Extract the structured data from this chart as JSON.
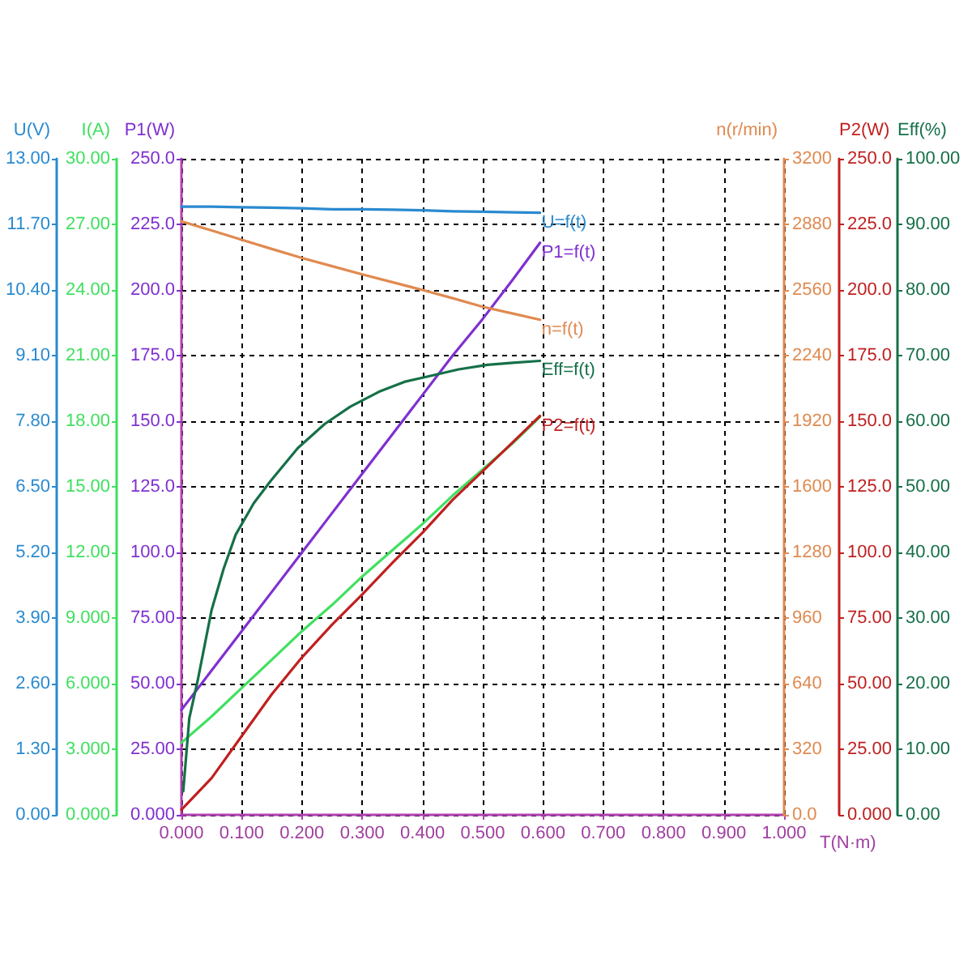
{
  "chart_data": [
    {
      "type": "line",
      "xlabel": "T(N·m)",
      "ylabel": "P1(W)",
      "y2label": "U(V)",
      "y3label": "I(A)",
      "xlim": [
        0,
        1
      ],
      "xticks": [
        {
          "value": 0,
          "label": "0.000"
        },
        {
          "value": 0.1,
          "label": "0.100"
        },
        {
          "value": 0.2,
          "label": "0.200"
        },
        {
          "value": 0.3,
          "label": "0.300"
        },
        {
          "value": 0.4,
          "label": "0.400"
        },
        {
          "value": 0.5,
          "label": "0.500"
        },
        {
          "value": 0.6,
          "label": "0.600"
        },
        {
          "value": 0.7,
          "label": "0.700"
        },
        {
          "value": 0.8,
          "label": "0.800"
        },
        {
          "value": 0.9,
          "label": "0.900"
        },
        {
          "value": 1,
          "label": "1.000"
        }
      ],
      "ylim": [
        0,
        250
      ],
      "yticks": [
        {
          "value": 0,
          "label": "0.000"
        },
        {
          "value": 25,
          "label": "25.00"
        },
        {
          "value": 50,
          "label": "50.00"
        },
        {
          "value": 75,
          "label": "75.00"
        },
        {
          "value": 100,
          "label": "100.0"
        },
        {
          "value": 125,
          "label": "125.0"
        },
        {
          "value": 150,
          "label": "150.0"
        },
        {
          "value": 175,
          "label": "175.0"
        },
        {
          "value": 200,
          "label": "200.0"
        },
        {
          "value": 225,
          "label": "225.0"
        },
        {
          "value": 250,
          "label": "250.0"
        }
      ],
      "y2lim": [
        0,
        13
      ],
      "y2ticks": [
        {
          "value": 0,
          "label": "0.00"
        },
        {
          "value": 1.3,
          "label": "1.30"
        },
        {
          "value": 2.6,
          "label": "2.60"
        },
        {
          "value": 3.9,
          "label": "3.90"
        },
        {
          "value": 5.2,
          "label": "5.20"
        },
        {
          "value": 6.5,
          "label": "6.50"
        },
        {
          "value": 7.8,
          "label": "7.80"
        },
        {
          "value": 9.1,
          "label": "9.10"
        },
        {
          "value": 10.4,
          "label": "10.40"
        },
        {
          "value": 11.7,
          "label": "11.70"
        },
        {
          "value": 13,
          "label": "13.00"
        }
      ],
      "y3lim": [
        0,
        30
      ],
      "y3ticks": [
        {
          "value": 0,
          "label": "0.000"
        },
        {
          "value": 3,
          "label": "3.000"
        },
        {
          "value": 6,
          "label": "6.000"
        },
        {
          "value": 9,
          "label": "9.000"
        },
        {
          "value": 12,
          "label": "12.00"
        },
        {
          "value": 15,
          "label": "15.00"
        },
        {
          "value": 18,
          "label": "18.00"
        },
        {
          "value": 21,
          "label": "21.00"
        },
        {
          "value": 24,
          "label": "24.00"
        },
        {
          "value": 27,
          "label": "27.00"
        },
        {
          "value": 30,
          "label": "30.00"
        }
      ],
      "x": [
        0,
        0.05,
        0.1,
        0.15,
        0.2,
        0.25,
        0.3,
        0.35,
        0.4,
        0.45,
        0.5,
        0.55,
        0.595
      ],
      "series": [
        {
          "name": "U=f(t)",
          "axis": "y2",
          "color": "#2a8ad0",
          "values": [
            12.05,
            12.05,
            12.04,
            12.03,
            12.02,
            12.0,
            12.0,
            11.99,
            11.98,
            11.96,
            11.95,
            11.94,
            11.93
          ]
        },
        {
          "name": "P1=f(t)",
          "color": "#8030d0",
          "values": [
            40,
            55,
            70,
            85,
            100,
            115,
            130,
            145,
            160,
            175,
            189,
            204,
            218
          ]
        },
        {
          "axis": "y3",
          "color": "#40e060",
          "values": [
            3.3,
            4.5,
            5.8,
            7.1,
            8.4,
            9.6,
            10.9,
            12.1,
            13.3,
            14.6,
            15.8,
            17.0,
            18.2
          ]
        }
      ],
      "grid": true,
      "legend": false,
      "marker": "none",
      "line_style": "solid"
    },
    {
      "type": "line",
      "ylabel": "n(r/min)",
      "y2label": "P2(W)",
      "y3label": "Eff(%)",
      "tick_labels": "y",
      "xlim": [
        0,
        1
      ],
      "ylim": [
        0,
        3200
      ],
      "yticks": [
        {
          "value": 0,
          "label": "0.0"
        },
        320,
        640,
        960,
        1280,
        1600,
        1920,
        2240,
        2560,
        2880,
        3200
      ],
      "y2lim": [
        0,
        250
      ],
      "y2ticks": [
        {
          "value": 0,
          "label": "0.000"
        },
        {
          "value": 25,
          "label": "25.00"
        },
        {
          "value": 50,
          "label": "50.00"
        },
        {
          "value": 75,
          "label": "75.00"
        },
        {
          "value": 100,
          "label": "100.0"
        },
        {
          "value": 125,
          "label": "125.0"
        },
        {
          "value": 150,
          "label": "150.0"
        },
        {
          "value": 175,
          "label": "175.0"
        },
        {
          "value": 200,
          "label": "200.0"
        },
        {
          "value": 225,
          "label": "225.0"
        },
        {
          "value": 250,
          "label": "250.0"
        }
      ],
      "y3lim": [
        0,
        100
      ],
      "y3ticks": [
        {
          "value": 0,
          "label": "0.00"
        },
        {
          "value": 10,
          "label": "10.00"
        },
        {
          "value": 20,
          "label": "20.00"
        },
        {
          "value": 30,
          "label": "30.00"
        },
        {
          "value": 40,
          "label": "40.00"
        },
        {
          "value": 50,
          "label": "50.00"
        },
        {
          "value": 60,
          "label": "60.00"
        },
        {
          "value": 70,
          "label": "70.00"
        },
        {
          "value": 80,
          "label": "80.00"
        },
        {
          "value": 90,
          "label": "90.00"
        },
        {
          "value": 100,
          "label": "100.00"
        }
      ],
      "x": [
        0,
        0.05,
        0.1,
        0.15,
        0.2,
        0.25,
        0.3,
        0.35,
        0.4,
        0.45,
        0.5,
        0.55,
        0.595
      ],
      "series": [
        {
          "name": "n=f(t)",
          "color": "#e08a50",
          "values": [
            2895,
            2850,
            2805,
            2760,
            2716,
            2676,
            2636,
            2598,
            2560,
            2520,
            2478,
            2445,
            2415
          ]
        },
        {
          "name": "Eff=f(t)",
          "axis": "y3",
          "color": "#157048",
          "x": [
            0.003,
            0.013,
            0.027,
            0.05,
            0.07,
            0.09,
            0.12,
            0.148,
            0.193,
            0.238,
            0.28,
            0.328,
            0.37,
            0.418,
            0.46,
            0.508,
            0.55,
            0.595
          ],
          "values": [
            3.6,
            14.7,
            20.5,
            31.2,
            37.5,
            42.7,
            47.5,
            50.9,
            55.9,
            59.6,
            62.2,
            64.5,
            66,
            67,
            67.9,
            68.6,
            68.9,
            69.2
          ]
        },
        {
          "name": "P2=f(t)",
          "axis": "y2",
          "color": "#c02020",
          "values": [
            2,
            14,
            30,
            46,
            60,
            72.5,
            84,
            96,
            107.5,
            120,
            131,
            142,
            152
          ]
        }
      ],
      "legend": false,
      "marker": "none",
      "line_style": "solid"
    }
  ]
}
